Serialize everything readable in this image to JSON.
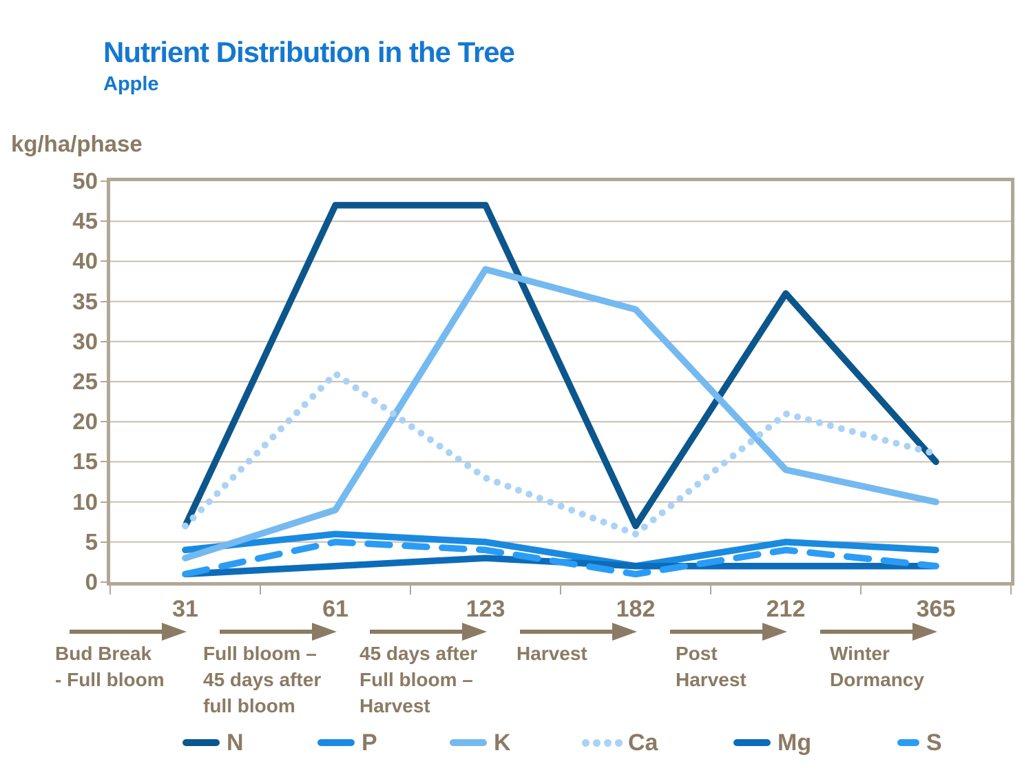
{
  "title": "Nutrient Distribution in the Tree",
  "subtitle": "Apple",
  "y_axis_unit": "kg/ha/phase",
  "colors": {
    "title_blue": "#1478d0",
    "axis_text_brown": "#8b7b64",
    "frame_tan": "#b2a696",
    "grid_tan": "#c9bfb2"
  },
  "chart_data": {
    "type": "line",
    "title": "Nutrient Distribution in the Tree",
    "subtitle": "Apple",
    "ylabel": "kg/ha/phase",
    "ylim": [
      0,
      50
    ],
    "ytick_step": 5,
    "grid": "horizontal",
    "legend_position": "bottom",
    "x_categories": [
      "31",
      "61",
      "123",
      "182",
      "212",
      "365"
    ],
    "phases": [
      {
        "day": "31",
        "label_lines": [
          "Bud Break",
          "- Full bloom"
        ]
      },
      {
        "day": "61",
        "label_lines": [
          "Full bloom –",
          "45 days after",
          "full bloom"
        ]
      },
      {
        "day": "123",
        "label_lines": [
          "45 days after",
          "Full bloom –",
          "Harvest"
        ]
      },
      {
        "day": "182",
        "label_lines": [
          "Harvest"
        ]
      },
      {
        "day": "212",
        "label_lines": [
          "Post",
          "Harvest"
        ]
      },
      {
        "day": "365",
        "label_lines": [
          "Winter",
          "Dormancy"
        ]
      }
    ],
    "series": [
      {
        "name": "N",
        "color": "#0b568c",
        "style": "solid",
        "values": [
          7,
          47,
          47,
          7,
          36,
          15
        ]
      },
      {
        "name": "P",
        "color": "#1a8ae0",
        "style": "solid",
        "values": [
          4,
          6,
          5,
          2,
          5,
          4
        ]
      },
      {
        "name": "K",
        "color": "#74b9f0",
        "style": "solid",
        "values": [
          3,
          9,
          39,
          34,
          14,
          10
        ]
      },
      {
        "name": "Ca",
        "color": "#a9d2f6",
        "style": "dotted",
        "values": [
          7,
          26,
          13,
          6,
          21,
          16
        ]
      },
      {
        "name": "Mg",
        "color": "#0d6cba",
        "style": "solid",
        "values": [
          1,
          2,
          3,
          2,
          2,
          2
        ]
      },
      {
        "name": "S",
        "color": "#2b9cf5",
        "style": "dashed",
        "values": [
          1,
          5,
          4,
          1,
          4,
          2
        ]
      }
    ]
  }
}
